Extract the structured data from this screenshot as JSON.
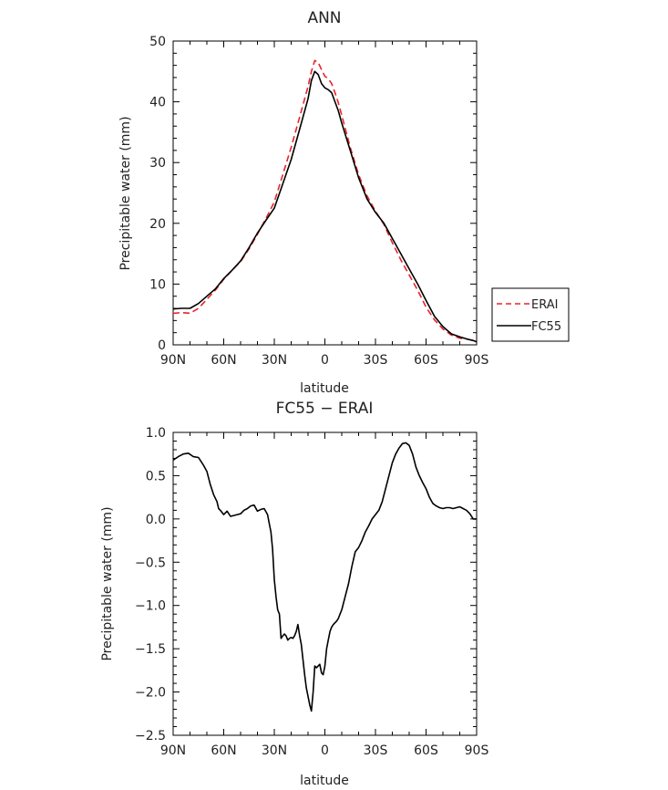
{
  "chart_data": [
    {
      "type": "line",
      "title": "ANN",
      "xlabel": "latitude",
      "ylabel": "Precipitable water (mm)",
      "xlim": [
        90,
        -90
      ],
      "ylim": [
        0,
        50
      ],
      "xticks": [
        90,
        60,
        30,
        0,
        -30,
        -60,
        -90
      ],
      "xtick_labels": [
        "90N",
        "60N",
        "30N",
        "0",
        "30S",
        "60S",
        "90S"
      ],
      "yticks": [
        0,
        10,
        20,
        30,
        40,
        50
      ],
      "ytick_labels": [
        "0",
        "10",
        "20",
        "30",
        "40",
        "50"
      ],
      "legend_position": "right",
      "series": [
        {
          "name": "ERAI",
          "color": "#e8232b",
          "dash": "dashed",
          "x": [
            90,
            85,
            80,
            75,
            70,
            65,
            60,
            55,
            50,
            45,
            40,
            35,
            30,
            25,
            20,
            15,
            10,
            8,
            6,
            4,
            2,
            0,
            -2,
            -4,
            -6,
            -8,
            -10,
            -15,
            -20,
            -25,
            -30,
            -35,
            -40,
            -45,
            -50,
            -55,
            -60,
            -65,
            -70,
            -75,
            -80,
            -85,
            -88,
            -90
          ],
          "y": [
            5.2,
            5.3,
            5.2,
            6.0,
            7.5,
            9.0,
            10.8,
            12.3,
            13.7,
            15.8,
            18.2,
            20.8,
            23.5,
            28.0,
            32.5,
            37.5,
            42.5,
            45.0,
            46.8,
            46.5,
            45.3,
            44.2,
            43.8,
            43.0,
            41.5,
            39.8,
            37.8,
            32.5,
            28.0,
            24.5,
            22.0,
            19.8,
            16.8,
            14.0,
            11.5,
            9.0,
            6.2,
            4.1,
            2.6,
            1.6,
            1.1,
            0.9,
            0.7,
            0.6
          ]
        },
        {
          "name": "FC55",
          "color": "#000000",
          "dash": "solid",
          "x": [
            90,
            85,
            80,
            75,
            70,
            65,
            60,
            55,
            50,
            45,
            40,
            35,
            30,
            25,
            20,
            15,
            10,
            8,
            6,
            4,
            2,
            0,
            -2,
            -4,
            -6,
            -8,
            -10,
            -15,
            -20,
            -25,
            -30,
            -35,
            -40,
            -45,
            -50,
            -55,
            -60,
            -65,
            -70,
            -75,
            -80,
            -85,
            -88,
            -90
          ],
          "y": [
            5.9,
            6.0,
            6.0,
            6.8,
            8.0,
            9.2,
            10.9,
            12.3,
            13.8,
            16.0,
            18.4,
            20.5,
            22.5,
            26.5,
            30.5,
            35.5,
            40.5,
            43.5,
            45.0,
            44.5,
            43.0,
            42.3,
            42.0,
            41.5,
            40.0,
            38.5,
            36.5,
            32.0,
            27.5,
            24.0,
            21.8,
            20.0,
            17.5,
            15.0,
            12.5,
            10.0,
            7.3,
            4.7,
            3.0,
            1.8,
            1.3,
            0.9,
            0.7,
            0.5
          ]
        }
      ]
    },
    {
      "type": "line",
      "title": "FC55 − ERAI",
      "xlabel": "latitude",
      "ylabel": "Precipitable water (mm)",
      "xlim": [
        90,
        -90
      ],
      "ylim": [
        -2.5,
        1.0
      ],
      "xticks": [
        90,
        60,
        30,
        0,
        -30,
        -60,
        -90
      ],
      "xtick_labels": [
        "90N",
        "60N",
        "30N",
        "0",
        "30S",
        "60S",
        "90S"
      ],
      "yticks": [
        1.0,
        0.5,
        0.0,
        -0.5,
        -1.0,
        -1.5,
        -2.0,
        -2.5
      ],
      "ytick_labels": [
        "1.0",
        "0.5",
        "0.0",
        "−0.5",
        "−1.0",
        "−1.5",
        "−2.0",
        "−2.5"
      ],
      "series": [
        {
          "name": "",
          "color": "#000000",
          "dash": "solid",
          "x": [
            90,
            87,
            84,
            81,
            78,
            75,
            72,
            70,
            68,
            66,
            64,
            63,
            62,
            60,
            58,
            56,
            54,
            52,
            50,
            48,
            46,
            44,
            42,
            40,
            38,
            36,
            34,
            33,
            32,
            31,
            30,
            29,
            28,
            27,
            26,
            25,
            24,
            23,
            22,
            21,
            20,
            19,
            18,
            17,
            16,
            15,
            14,
            13,
            12,
            11,
            10,
            9,
            8,
            7,
            6,
            5,
            4,
            3,
            2,
            1,
            0,
            -1,
            -2,
            -3,
            -4,
            -5,
            -6,
            -7,
            -8,
            -9,
            -10,
            -12,
            -14,
            -16,
            -18,
            -20,
            -22,
            -24,
            -26,
            -28,
            -30,
            -32,
            -34,
            -36,
            -38,
            -40,
            -42,
            -44,
            -46,
            -48,
            -50,
            -52,
            -54,
            -56,
            -58,
            -60,
            -62,
            -64,
            -66,
            -68,
            -70,
            -72,
            -74,
            -76,
            -78,
            -80,
            -82,
            -84,
            -86,
            -88,
            -90
          ],
          "y": [
            0.68,
            0.72,
            0.75,
            0.76,
            0.72,
            0.71,
            0.62,
            0.55,
            0.4,
            0.28,
            0.2,
            0.12,
            0.1,
            0.05,
            0.09,
            0.03,
            0.04,
            0.05,
            0.06,
            0.1,
            0.12,
            0.15,
            0.16,
            0.09,
            0.11,
            0.12,
            0.05,
            -0.05,
            -0.15,
            -0.35,
            -0.7,
            -0.9,
            -1.05,
            -1.1,
            -1.38,
            -1.35,
            -1.33,
            -1.35,
            -1.4,
            -1.38,
            -1.37,
            -1.38,
            -1.35,
            -1.3,
            -1.22,
            -1.35,
            -1.45,
            -1.62,
            -1.8,
            -1.95,
            -2.05,
            -2.15,
            -2.22,
            -2.0,
            -1.7,
            -1.72,
            -1.7,
            -1.68,
            -1.78,
            -1.8,
            -1.7,
            -1.5,
            -1.4,
            -1.3,
            -1.25,
            -1.22,
            -1.2,
            -1.18,
            -1.15,
            -1.1,
            -1.05,
            -0.9,
            -0.75,
            -0.55,
            -0.38,
            -0.33,
            -0.25,
            -0.15,
            -0.08,
            0.0,
            0.05,
            0.1,
            0.2,
            0.35,
            0.5,
            0.65,
            0.75,
            0.82,
            0.87,
            0.88,
            0.85,
            0.75,
            0.6,
            0.5,
            0.42,
            0.35,
            0.25,
            0.18,
            0.15,
            0.13,
            0.12,
            0.13,
            0.13,
            0.12,
            0.13,
            0.14,
            0.12,
            0.1,
            0.06,
            0.0,
            0.0
          ]
        }
      ]
    }
  ]
}
